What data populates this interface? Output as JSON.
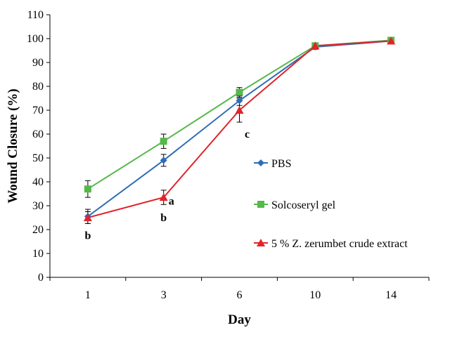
{
  "chart_data": {
    "type": "line",
    "categories": [
      "1",
      "3",
      "6",
      "10",
      "14"
    ],
    "xlabel": "Day",
    "ylabel": "Wound Closure (%)",
    "ylim": [
      0,
      110
    ],
    "yticks": [
      0,
      10,
      20,
      30,
      40,
      50,
      60,
      70,
      80,
      90,
      100,
      110
    ],
    "grid": false,
    "legend_position": "right",
    "series": [
      {
        "name": "PBS",
        "color": "#2e6db5",
        "marker": "diamond",
        "values": [
          25.5,
          49,
          74,
          96.5,
          99
        ],
        "errors": [
          3,
          2.5,
          2,
          1,
          0.5
        ]
      },
      {
        "name": "Solcoseryl gel",
        "color": "#55b84a",
        "marker": "square",
        "values": [
          37,
          57,
          77.5,
          97,
          99.3
        ],
        "errors": [
          3.5,
          3,
          2,
          0.8,
          0.5
        ]
      },
      {
        "name": "5 % Z. zerumbet crude extract",
        "color": "#e0242b",
        "marker": "triangle",
        "values": [
          25,
          33.5,
          70,
          97,
          99
        ],
        "errors": [
          2.5,
          3,
          5,
          0.8,
          0.5
        ]
      }
    ],
    "annotations": [
      {
        "text": "b",
        "category": "1",
        "value": 16
      },
      {
        "text": "a",
        "category": "3",
        "value": 30.5
      },
      {
        "text": "b",
        "category": "3",
        "value": 23.5
      },
      {
        "text": "c",
        "category": "6",
        "value": 58.5
      }
    ]
  }
}
